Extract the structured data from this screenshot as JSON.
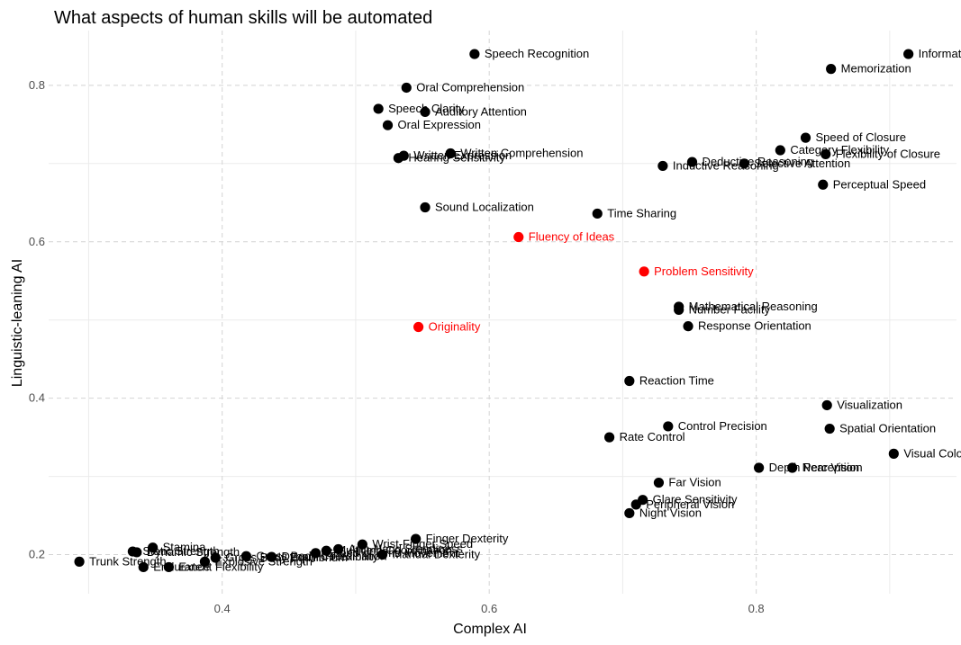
{
  "chart_data": {
    "type": "scatter",
    "title": "What aspects of human skills will be automated",
    "xlabel": "Complex AI",
    "ylabel": "Linguistic-leaning AI",
    "xlim": [
      0.27,
      0.95
    ],
    "ylim": [
      0.15,
      0.87
    ],
    "x_ticks": [
      0.4,
      0.6,
      0.8
    ],
    "y_ticks": [
      0.2,
      0.4,
      0.6,
      0.8
    ],
    "x_tick_labels": [
      "0.4",
      "0.6",
      "0.8"
    ],
    "y_tick_labels": [
      "0.2",
      "0.4",
      "0.6",
      "0.8"
    ],
    "grid": true,
    "legend": "none",
    "colors": {
      "default": "#000000",
      "highlight": "#ff0000"
    },
    "points": [
      {
        "label": "Speech Recognition",
        "x": 0.589,
        "y": 0.84
      },
      {
        "label": "Information Ordering",
        "x": 0.914,
        "y": 0.84
      },
      {
        "label": "Memorization",
        "x": 0.856,
        "y": 0.821
      },
      {
        "label": "Oral Comprehension",
        "x": 0.538,
        "y": 0.797
      },
      {
        "label": "Speech Clarity",
        "x": 0.517,
        "y": 0.77
      },
      {
        "label": "Auditory Attention",
        "x": 0.552,
        "y": 0.766
      },
      {
        "label": "Oral Expression",
        "x": 0.524,
        "y": 0.749
      },
      {
        "label": "Speed of Closure",
        "x": 0.837,
        "y": 0.733
      },
      {
        "label": "Category Flexibility",
        "x": 0.818,
        "y": 0.717
      },
      {
        "label": "Flexibility of Closure",
        "x": 0.852,
        "y": 0.712
      },
      {
        "label": "Written Comprehension",
        "x": 0.571,
        "y": 0.713
      },
      {
        "label": "Written Expression",
        "x": 0.536,
        "y": 0.71
      },
      {
        "label": "Hearing Sensitivity",
        "x": 0.532,
        "y": 0.707
      },
      {
        "label": "Deductive Reasoning",
        "x": 0.752,
        "y": 0.702
      },
      {
        "label": "Selective Attention",
        "x": 0.791,
        "y": 0.7
      },
      {
        "label": "Inductive Reasoning",
        "x": 0.73,
        "y": 0.697
      },
      {
        "label": "Perceptual Speed",
        "x": 0.85,
        "y": 0.673
      },
      {
        "label": "Sound Localization",
        "x": 0.552,
        "y": 0.644
      },
      {
        "label": "Time Sharing",
        "x": 0.681,
        "y": 0.636
      },
      {
        "label": "Fluency of Ideas",
        "x": 0.622,
        "y": 0.606,
        "highlight": true
      },
      {
        "label": "Problem Sensitivity",
        "x": 0.716,
        "y": 0.562,
        "highlight": true
      },
      {
        "label": "Mathematical Reasoning",
        "x": 0.742,
        "y": 0.517
      },
      {
        "label": "Number Facility",
        "x": 0.742,
        "y": 0.513
      },
      {
        "label": "Originality",
        "x": 0.547,
        "y": 0.491,
        "highlight": true
      },
      {
        "label": "Response Orientation",
        "x": 0.749,
        "y": 0.492
      },
      {
        "label": "Reaction Time",
        "x": 0.705,
        "y": 0.422
      },
      {
        "label": "Visualization",
        "x": 0.853,
        "y": 0.391
      },
      {
        "label": "Control Precision",
        "x": 0.734,
        "y": 0.364
      },
      {
        "label": "Spatial Orientation",
        "x": 0.855,
        "y": 0.361
      },
      {
        "label": "Rate Control",
        "x": 0.69,
        "y": 0.35
      },
      {
        "label": "Visual Color Discrimination",
        "x": 0.903,
        "y": 0.329
      },
      {
        "label": "Depth Perception",
        "x": 0.802,
        "y": 0.311
      },
      {
        "label": "Near Vision",
        "x": 0.827,
        "y": 0.311
      },
      {
        "label": "Far Vision",
        "x": 0.727,
        "y": 0.292
      },
      {
        "label": "Glare Sensitivity",
        "x": 0.715,
        "y": 0.27
      },
      {
        "label": "Peripheral Vision",
        "x": 0.71,
        "y": 0.264
      },
      {
        "label": "Night Vision",
        "x": 0.705,
        "y": 0.253
      },
      {
        "label": "Finger Dexterity",
        "x": 0.545,
        "y": 0.22
      },
      {
        "label": "Wrist-Finger Speed",
        "x": 0.505,
        "y": 0.213
      },
      {
        "label": "Stamina",
        "x": 0.348,
        "y": 0.209
      },
      {
        "label": "Static Strength",
        "x": 0.333,
        "y": 0.204
      },
      {
        "label": "Dynamic Strength",
        "x": 0.336,
        "y": 0.203
      },
      {
        "label": "Manual Dexterity",
        "x": 0.52,
        "y": 0.2
      },
      {
        "label": "Arm-Hand Steadiness",
        "x": 0.487,
        "y": 0.207
      },
      {
        "label": "Multilimb Coordination",
        "x": 0.478,
        "y": 0.205
      },
      {
        "label": "Speed of Limb Movement",
        "x": 0.47,
        "y": 0.202
      },
      {
        "label": "Gross Body Coordination",
        "x": 0.418,
        "y": 0.198
      },
      {
        "label": "Gross Body Equilibrium",
        "x": 0.395,
        "y": 0.196
      },
      {
        "label": "Explosive Strength",
        "x": 0.387,
        "y": 0.191
      },
      {
        "label": "Dynamic Flexibility",
        "x": 0.437,
        "y": 0.197
      },
      {
        "label": "Trunk Strength",
        "x": 0.293,
        "y": 0.191
      },
      {
        "label": "Extent Flexibility",
        "x": 0.36,
        "y": 0.184
      },
      {
        "label": "Endurance",
        "x": 0.341,
        "y": 0.184
      }
    ]
  }
}
